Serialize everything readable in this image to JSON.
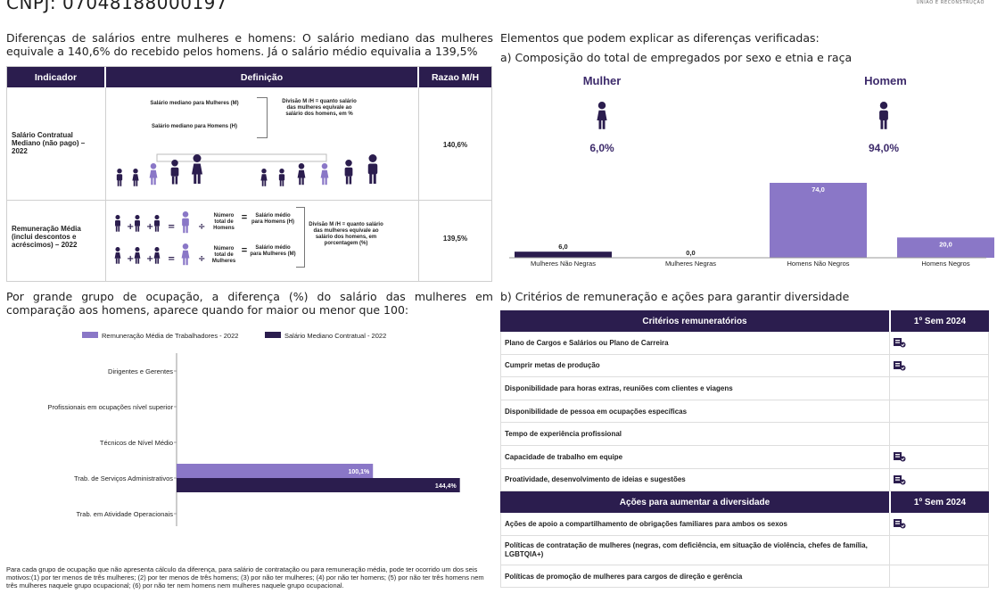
{
  "header": {
    "cnpj": "CNPJ: 07048188000197",
    "corner_text": "UNIÃO E RECONSTRUÇÃO"
  },
  "intro_text": "Diferenças de salários entre mulheres e homens: O salário mediano das mulheres equivale a 140,6% do recebido pelos homens. Já o salário médio equivalia a 139,5%",
  "salary_table": {
    "headers": [
      "Indicador",
      "Definição",
      "Razao M/H"
    ],
    "row1": {
      "indicator": "Salário Contratual Mediano (não pago) – 2022",
      "def_women": "Salário mediano para Mulheres (M)",
      "def_men": "Salário mediano para Homens (H)",
      "division": "Divisão M /H = quanto salário das mulheres equivale ao salário dos homens, em %",
      "ratio": "140,6%"
    },
    "row2": {
      "indicator": "Remuneração Média (inclui descontos e acréscimos) – 2022",
      "num_men": "Número total de Homens",
      "num_women": "Número total de Mulheres",
      "avg_men": "Salário médio para Homens (H)",
      "avg_women": "Salário médio para Mulheres (M)",
      "division": "Divisão M /H = quanto salário das mulheres equivale ao salário dos homens, em porcentagem (%)",
      "ratio": "139,5%"
    }
  },
  "right_header": "Elementos que podem explicar as diferenças verificadas:",
  "right_sub": "a) Composição do total de empregados por sexo e etnia e raça",
  "occupation_title": "Por grande grupo de ocupação, a diferença (%) do salário das mulheres em comparação aos homens, aparece quando for maior ou menor que 100:",
  "footnote": "Para cada grupo de ocupação que não apresenta cálculo da diferença, para salário de contratação ou para remuneração média, pode ter ocorrido um dos seis motivos:(1) por ter menos de três mulheres; (2) por ter menos de três homens; (3) por não ter mulheres; (4) por não ter homens; (5) por não ter três homens nem três mulheres naquele grupo ocupacional; (6) por não ter nem homens nem mulheres naquele grupo ocupacional.",
  "criteria_title": "b) Critérios de remuneração e ações para garantir diversidade",
  "criteria": {
    "header_left": "Critérios remuneratórios",
    "header_right": "1º Sem 2024",
    "rows": [
      {
        "label": "Plano de Cargos e Salários ou Plano de Carreira",
        "checked": true
      },
      {
        "label": "Cumprir metas de produção",
        "checked": true
      },
      {
        "label": "Disponibilidade para horas extras, reuniões com clientes e viagens",
        "checked": false
      },
      {
        "label": "Disponibilidade de pessoa em ocupações específicas",
        "checked": false
      },
      {
        "label": "Tempo de experiência profissional",
        "checked": false
      },
      {
        "label": "Capacidade de trabalho em equipe",
        "checked": true
      },
      {
        "label": "Proatividade, desenvolvimento de ideias e sugestões",
        "checked": true
      }
    ]
  },
  "actions": {
    "header_left": "Ações para aumentar a diversidade",
    "header_right": "1º Sem 2024",
    "rows": [
      {
        "label": "Ações de apoio a compartilhamento de obrigações familiares para ambos os sexos",
        "checked": true
      },
      {
        "label": "Políticas de contratação de mulheres (negras, com deficiência, em situação de violência, chefes de família, LGBTQIA+)",
        "checked": false
      },
      {
        "label": "Políticas de promoção de mulheres para cargos de direção e gerência",
        "checked": false
      }
    ]
  },
  "chart_data": [
    {
      "type": "bar",
      "summary": {
        "women_label": "Mulher",
        "women_pct": "6,0%",
        "men_label": "Homem",
        "men_pct": "94,0%"
      },
      "categories": [
        "Mulheres Não Negras",
        "Mulheres Negras",
        "Homens Não Negros",
        "Homens Negros"
      ],
      "values": [
        6.0,
        0.0,
        74.0,
        20.0
      ],
      "value_labels": [
        "6,0",
        "0,0",
        "74,0",
        "20,0"
      ],
      "ylim": [
        0,
        80
      ],
      "colors": {
        "women": "#2b1d4e",
        "men": "#8a77c7"
      },
      "grid": false
    },
    {
      "type": "bar",
      "orientation": "horizontal",
      "categories": [
        "Dirigentes e Gerentes",
        "Profissionais em ocupações nível superior",
        "Técnicos de Nível Médio",
        "Trab. de Serviços Administrativos",
        "Trab. em Atividade Operacionais"
      ],
      "series": [
        {
          "name": "Remuneração Média de Trabalhadores - 2022",
          "values": [
            null,
            null,
            null,
            100.1,
            null
          ],
          "labels": [
            "",
            "",
            "",
            "100,1%",
            ""
          ],
          "color": "#8a77c7"
        },
        {
          "name": "Salário Mediano Contratual - 2022",
          "values": [
            null,
            null,
            null,
            144.4,
            null
          ],
          "labels": [
            "",
            "",
            "",
            "144,4%",
            ""
          ],
          "color": "#2b1d4e"
        }
      ],
      "xlim": [
        0,
        150
      ],
      "legend": "top",
      "grid": false
    }
  ]
}
